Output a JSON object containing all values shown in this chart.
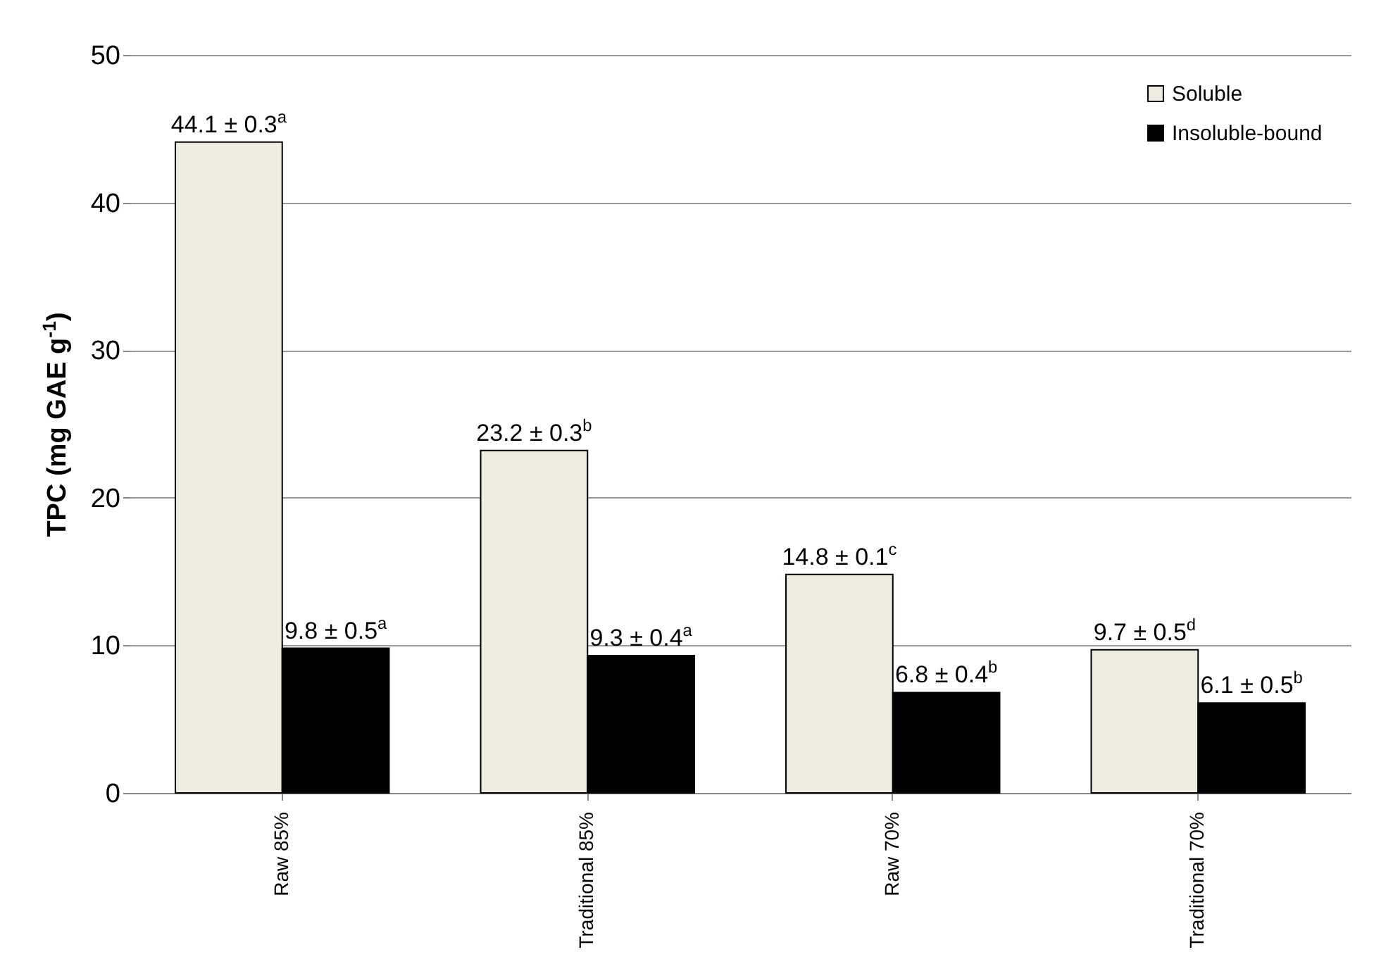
{
  "chart_data": {
    "type": "bar",
    "ylabel": "TPC (mg GAE g$^{-1}$)",
    "categories": [
      "Raw 85%",
      "Traditional 85%",
      "Raw 70%",
      "Traditional 70%"
    ],
    "series": [
      {
        "name": "Soluble",
        "color": "#eeece1",
        "values": [
          44.1,
          23.2,
          14.8,
          9.7
        ],
        "value_labels": [
          "44.1 ± 0.3$^{a}$",
          "23.2 ± 0.3$^{b}$",
          "14.8 ± 0.1$^{c}$",
          "9.7 ± 0.5$^{d}$"
        ]
      },
      {
        "name": "Insoluble-bound",
        "color": "#000000",
        "values": [
          9.8,
          9.3,
          6.8,
          6.1
        ],
        "value_labels": [
          "9.8 ± 0.5$^{a}$",
          "9.3 ± 0.4$^{a}$",
          "6.8 ± 0.4$^{b}$",
          "6.1 ± 0.5$^{b}$"
        ]
      }
    ],
    "ylim": [
      0,
      50
    ],
    "yticks": [
      0,
      10,
      20,
      30,
      40,
      50
    ],
    "grid": "y",
    "legend": "top right"
  }
}
